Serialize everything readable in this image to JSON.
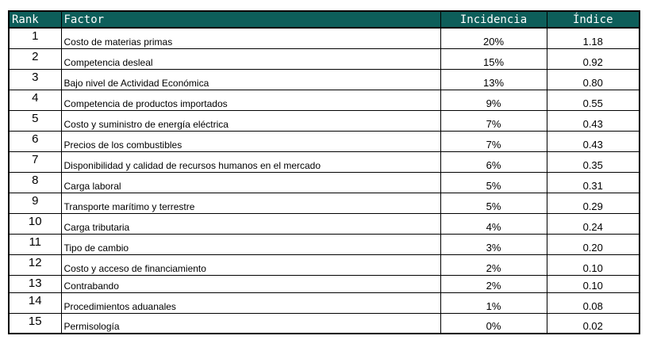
{
  "table": {
    "headers": {
      "rank": "Rank",
      "factor": "Factor",
      "incidencia": "Incidencia",
      "indice": "Índice"
    },
    "rows": [
      {
        "rank": "1",
        "factor": "Costo de materias primas",
        "incidencia": "20%",
        "indice": "1.18"
      },
      {
        "rank": "2",
        "factor": "Competencia desleal",
        "incidencia": "15%",
        "indice": "0.92"
      },
      {
        "rank": "3",
        "factor": "Bajo nivel de Actividad Económica",
        "incidencia": "13%",
        "indice": "0.80"
      },
      {
        "rank": "4",
        "factor": "Competencia de productos importados",
        "incidencia": "9%",
        "indice": "0.55"
      },
      {
        "rank": "5",
        "factor": "Costo y suministro de energía eléctrica",
        "incidencia": "7%",
        "indice": "0.43"
      },
      {
        "rank": "6",
        "factor": "Precios de los combustibles",
        "incidencia": "7%",
        "indice": "0.43"
      },
      {
        "rank": "7",
        "factor": "Disponibilidad y calidad de recursos humanos en el mercado",
        "incidencia": "6%",
        "indice": "0.35"
      },
      {
        "rank": "8",
        "factor": "Carga laboral",
        "incidencia": "5%",
        "indice": "0.31"
      },
      {
        "rank": "9",
        "factor": "Transporte marítimo y terrestre",
        "incidencia": "5%",
        "indice": "0.29"
      },
      {
        "rank": "10",
        "factor": "Carga tributaria",
        "incidencia": "4%",
        "indice": "0.24"
      },
      {
        "rank": "11",
        "factor": "Tipo de cambio",
        "incidencia": "3%",
        "indice": "0.20"
      },
      {
        "rank": "12",
        "factor": "Costo y acceso de financiamiento",
        "incidencia": "2%",
        "indice": "0.10"
      },
      {
        "rank": "13",
        "factor": "Contrabando",
        "incidencia": "2%",
        "indice": "0.10"
      },
      {
        "rank": "14",
        "factor": "Procedimientos aduanales",
        "incidencia": "1%",
        "indice": "0.08"
      },
      {
        "rank": "15",
        "factor": "Permisología",
        "incidencia": "0%",
        "indice": "0.02"
      }
    ]
  },
  "colors": {
    "header_background": "#0d5e5a",
    "header_text": "#ffffff",
    "grid_lines": "#000000"
  }
}
